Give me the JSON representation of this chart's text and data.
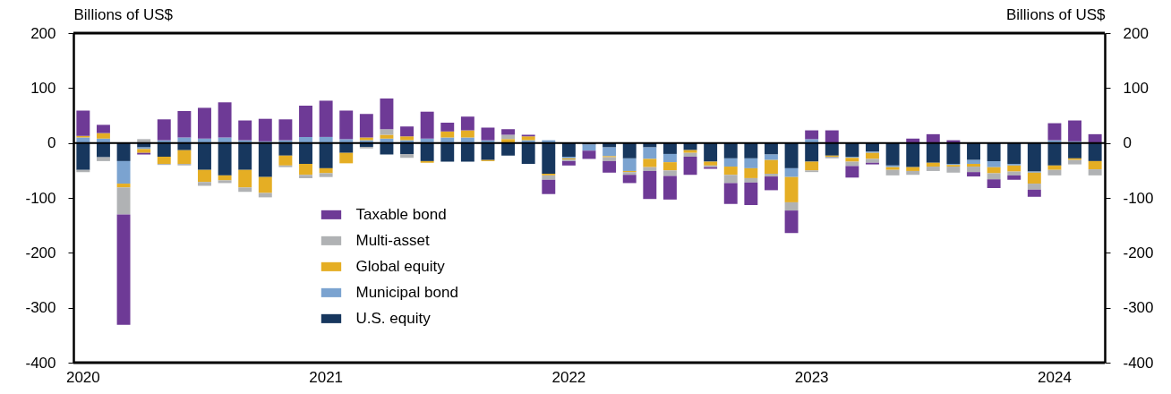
{
  "chart_data": {
    "type": "bar",
    "stacked": true,
    "ylabel": "Billions of US$",
    "y2label": "Billions of US$",
    "categories": [
      "2020",
      null,
      null,
      null,
      null,
      null,
      null,
      null,
      null,
      null,
      null,
      null,
      "2021",
      null,
      null,
      null,
      null,
      null,
      null,
      null,
      null,
      null,
      null,
      null,
      "2022",
      null,
      null,
      null,
      null,
      null,
      null,
      null,
      null,
      null,
      null,
      null,
      "2023",
      null,
      null,
      null,
      null,
      null,
      null,
      null,
      null,
      null,
      null,
      null,
      "2024",
      null,
      null
    ],
    "series": [
      {
        "name": "U.S. equity",
        "color": "#17375e",
        "values": [
          -49,
          -26,
          -33,
          -8,
          -25,
          -13,
          -49,
          -59,
          -49,
          -62,
          -23,
          -38,
          -46,
          -18,
          -7,
          -21,
          -20,
          -33,
          -34,
          -34,
          -31,
          -23,
          -38,
          -56,
          -25,
          -3,
          -8,
          -28,
          -8,
          -20,
          -13,
          -34,
          -28,
          -28,
          -21,
          -46,
          -34,
          -23,
          -25,
          -16,
          -41,
          -44,
          -36,
          -38,
          -31,
          -33,
          -38,
          -52,
          -41,
          -28,
          -33
        ]
      },
      {
        "name": "Municipal bond",
        "color": "#7ba3d0",
        "values": [
          10,
          8,
          -41,
          -3,
          5,
          10,
          8,
          10,
          5,
          3,
          5,
          11,
          11,
          7,
          5,
          8,
          5,
          8,
          10,
          10,
          5,
          null,
          5,
          5,
          -3,
          -11,
          -16,
          -23,
          -21,
          -15,
          null,
          null,
          -15,
          -18,
          -10,
          -16,
          7,
          null,
          -2,
          -2,
          -3,
          null,
          null,
          -2,
          -7,
          -11,
          -3,
          -2,
          5,
          3,
          null
        ]
      },
      {
        "name": "Global equity",
        "color": "#e5ae24",
        "values": [
          3,
          10,
          -7,
          -7,
          -13,
          -25,
          -22,
          -9,
          -32,
          -29,
          -18,
          -20,
          -9,
          -19,
          5,
          7,
          7,
          -3,
          11,
          13,
          -2,
          7,
          7,
          -3,
          -2,
          null,
          -2,
          -2,
          -15,
          -15,
          -5,
          -7,
          -15,
          -18,
          -25,
          -46,
          -16,
          -2,
          -7,
          -11,
          -5,
          -7,
          -7,
          -3,
          -5,
          -11,
          -11,
          -20,
          -8,
          -3,
          -15
        ]
      },
      {
        "name": "Multi-asset",
        "color": "#b0b2b4",
        "values": [
          -4,
          -7,
          -49,
          7,
          -2,
          -3,
          -7,
          -5,
          -8,
          -8,
          -3,
          -6,
          -7,
          null,
          -3,
          10,
          -7,
          null,
          null,
          null,
          null,
          8,
          null,
          -8,
          -3,
          null,
          -7,
          -5,
          -7,
          -10,
          -7,
          -3,
          -15,
          -8,
          -5,
          -15,
          -3,
          -3,
          -8,
          -7,
          -10,
          -7,
          -8,
          -11,
          -10,
          -11,
          -7,
          -11,
          -10,
          -8,
          -11
        ]
      },
      {
        "name": "Taxable bond",
        "color": "#6e3a96",
        "values": [
          46,
          15,
          -201,
          -3,
          38,
          48,
          56,
          64,
          36,
          41,
          38,
          57,
          66,
          52,
          43,
          56,
          18,
          49,
          16,
          25,
          23,
          10,
          3,
          -26,
          -8,
          -15,
          -21,
          -15,
          -51,
          -43,
          -33,
          -3,
          -38,
          -41,
          -25,
          -41,
          16,
          23,
          -21,
          -3,
          null,
          8,
          16,
          5,
          -8,
          -16,
          -8,
          -13,
          31,
          38,
          16
        ]
      }
    ],
    "ylim": [
      -400,
      200
    ],
    "yticks": [
      -400,
      -300,
      -200,
      -100,
      0,
      100,
      200
    ],
    "y2lim": [
      -400,
      200
    ],
    "y2ticks": [
      -400,
      -300,
      -200,
      -100,
      0,
      100,
      200
    ],
    "ref_lines": [
      {
        "axis": "y",
        "value": 0,
        "color": "#000000"
      }
    ],
    "legend": "bottom left"
  }
}
